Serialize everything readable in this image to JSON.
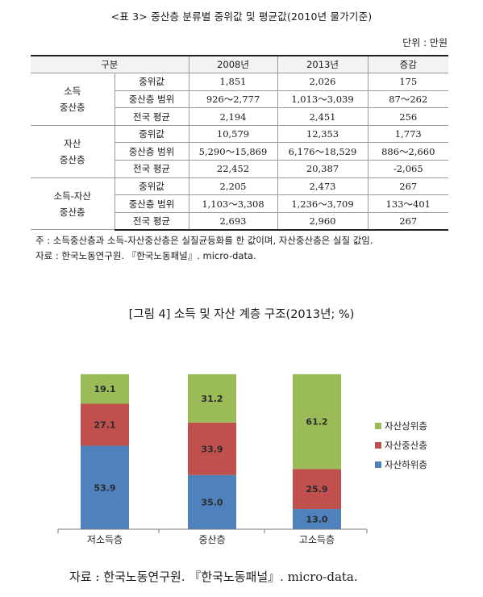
{
  "table": {
    "title": "<표 3> 중산층 분류별 중위값 및 평균값(2010년 물가기준)",
    "unit": "단위 : 만원",
    "headers": [
      "구분",
      "2008년",
      "2013년",
      "증감"
    ],
    "groups": [
      {
        "name_line1": "소득",
        "name_line2": "중산층",
        "rows": [
          {
            "label": "중위값",
            "y2008": "1,851",
            "y2013": "2,026",
            "change": "175"
          },
          {
            "label": "중산층 범위",
            "y2008": "926～2,777",
            "y2013": "1,013～3,039",
            "change": "87～262"
          },
          {
            "label": "전국 평균",
            "y2008": "2,194",
            "y2013": "2,451",
            "change": "256"
          }
        ]
      },
      {
        "name_line1": "자산",
        "name_line2": "중산층",
        "rows": [
          {
            "label": "중위값",
            "y2008": "10,579",
            "y2013": "12,353",
            "change": "1,773"
          },
          {
            "label": "중산층 범위",
            "y2008": "5,290～15,869",
            "y2013": "6,176～18,529",
            "change": "886～2,660"
          },
          {
            "label": "전국 평균",
            "y2008": "22,452",
            "y2013": "20,387",
            "change": "-2,065"
          }
        ]
      },
      {
        "name_line1": "소득-자산",
        "name_line2": "중산층",
        "rows": [
          {
            "label": "중위값",
            "y2008": "2,205",
            "y2013": "2,473",
            "change": "267"
          },
          {
            "label": "중산층 범위",
            "y2008": "1,103～3,308",
            "y2013": "1,236～3,709",
            "change": "133～401"
          },
          {
            "label": "전국 평균",
            "y2008": "2,693",
            "y2013": "2,960",
            "change": "267"
          }
        ]
      }
    ],
    "note": "주 : 소득중산층과 소득-자산중산층은 실질균등화를 한 값이며, 자산중산층은 실질 값임.",
    "source": "자료 : 한국노동연구원. 『한국노동패널』. micro-data."
  },
  "figure": {
    "title": "[그림 4] 소득 및 자산 계층 구조(2013년; %)",
    "source": "자료 : 한국노동연구원. 『한국노동패널』. micro-data."
  },
  "chart_data": {
    "type": "bar",
    "stacked": true,
    "categories": [
      "저소득층",
      "중산층",
      "고소득층"
    ],
    "series": [
      {
        "name": "자산하위층",
        "values": [
          53.9,
          35.0,
          13.0
        ],
        "color": "#4f81bd"
      },
      {
        "name": "자산중산층",
        "values": [
          27.1,
          33.9,
          25.9
        ],
        "color": "#c0504d"
      },
      {
        "name": "자산상위층",
        "values": [
          19.1,
          31.2,
          61.2
        ],
        "color": "#9bbb59"
      }
    ],
    "value_labels": [
      [
        "53.9",
        "35.0",
        "13.0"
      ],
      [
        "27.1",
        "33.9",
        "25.9"
      ],
      [
        "19.1",
        "31.2",
        "61.2"
      ]
    ],
    "legend_order": [
      "자산상위층",
      "자산중산층",
      "자산하위층"
    ],
    "legend_position": "right",
    "ylim": [
      0,
      100
    ],
    "grid": false
  }
}
